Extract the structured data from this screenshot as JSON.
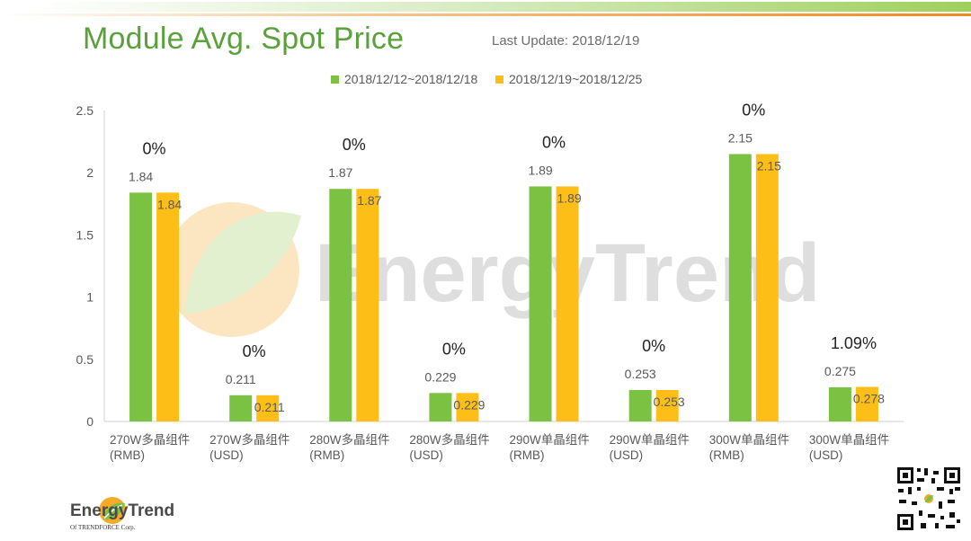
{
  "slide": {
    "title": "Module Avg. Spot Price",
    "last_update": "Last Update: 2018/12/19"
  },
  "watermark": {
    "text": "EnergyTrend"
  },
  "footer": {
    "logo_text": "EnergyTrend",
    "logo_subtext": "Of TRENDFORCE Corp."
  },
  "colors": {
    "series1": "#7cc242",
    "series2": "#fdbf17",
    "title": "#5aa13b",
    "axis_text": "#595959"
  },
  "chart_data": {
    "type": "bar",
    "title": "Module Avg. Spot Price",
    "categories": [
      [
        "270W多晶组件",
        "(RMB)"
      ],
      [
        "270W多晶组件",
        "(USD)"
      ],
      [
        "280W多晶组件",
        "(RMB)"
      ],
      [
        "280W多晶组件",
        "(USD)"
      ],
      [
        "290W单晶组件",
        "(RMB)"
      ],
      [
        "290W单晶组件",
        "(USD)"
      ],
      [
        "300W单晶组件",
        "(RMB)"
      ],
      [
        "300W单晶组件",
        "(USD)"
      ]
    ],
    "series": [
      {
        "name": "2018/12/12~2018/12/18",
        "values": [
          1.84,
          0.211,
          1.87,
          0.229,
          1.89,
          0.253,
          2.15,
          0.275
        ],
        "labels": [
          "1.84",
          "0.211",
          "1.87",
          "0.229",
          "1.89",
          "0.253",
          "2.15",
          "0.275"
        ]
      },
      {
        "name": "2018/12/19~2018/12/25",
        "values": [
          1.84,
          0.211,
          1.87,
          0.229,
          1.89,
          0.253,
          2.15,
          0.278
        ],
        "labels": [
          "1.84",
          "0.211",
          "1.87",
          "0.229",
          "1.89",
          "0.253",
          "2.15",
          "0.278"
        ]
      }
    ],
    "change_labels": [
      "0%",
      "0%",
      "0%",
      "0%",
      "0%",
      "0%",
      "0%",
      "1.09%"
    ],
    "ylim": [
      0,
      2.5
    ],
    "yticks": [
      "0",
      "0.5",
      "1",
      "1.5",
      "2",
      "2.5"
    ],
    "ytick_values": [
      0,
      0.5,
      1,
      1.5,
      2,
      2.5
    ],
    "xlabel": "",
    "ylabel": "",
    "legend_position": "top",
    "grid": false
  }
}
